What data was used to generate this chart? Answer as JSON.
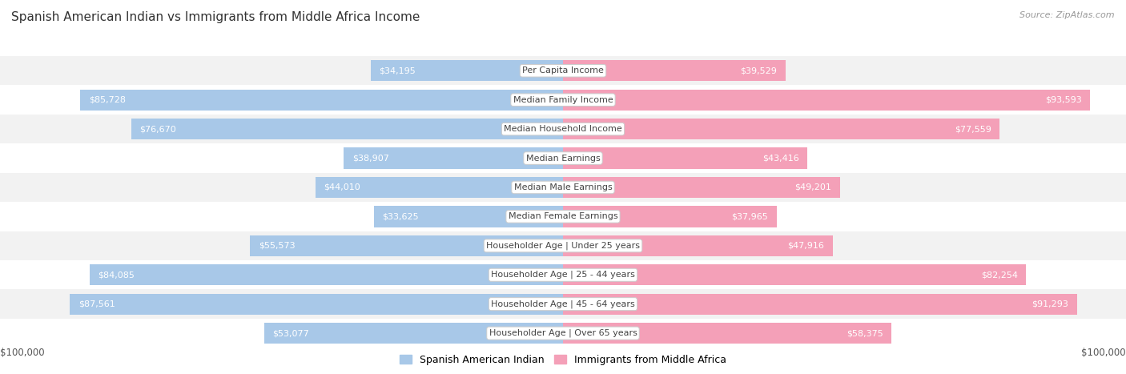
{
  "title": "Spanish American Indian vs Immigrants from Middle Africa Income",
  "source": "Source: ZipAtlas.com",
  "categories": [
    "Per Capita Income",
    "Median Family Income",
    "Median Household Income",
    "Median Earnings",
    "Median Male Earnings",
    "Median Female Earnings",
    "Householder Age | Under 25 years",
    "Householder Age | 25 - 44 years",
    "Householder Age | 45 - 64 years",
    "Householder Age | Over 65 years"
  ],
  "left_values": [
    34195,
    85728,
    76670,
    38907,
    44010,
    33625,
    55573,
    84085,
    87561,
    53077
  ],
  "right_values": [
    39529,
    93593,
    77559,
    43416,
    49201,
    37965,
    47916,
    82254,
    91293,
    58375
  ],
  "left_labels": [
    "$34,195",
    "$85,728",
    "$76,670",
    "$38,907",
    "$44,010",
    "$33,625",
    "$55,573",
    "$84,085",
    "$87,561",
    "$53,077"
  ],
  "right_labels": [
    "$39,529",
    "$93,593",
    "$77,559",
    "$43,416",
    "$49,201",
    "$37,965",
    "$47,916",
    "$82,254",
    "$91,293",
    "$58,375"
  ],
  "max_value": 100000,
  "left_bar_color": "#a8c8e8",
  "right_bar_color": "#f4a0b8",
  "background_color": "#ffffff",
  "row_bg_colors": [
    "#f2f2f2",
    "#ffffff"
  ],
  "legend_left": "Spanish American Indian",
  "legend_right": "Immigrants from Middle Africa",
  "title_fontsize": 11,
  "label_fontsize": 8,
  "category_fontsize": 8,
  "source_fontsize": 8,
  "axis_tick_label": "$100,000",
  "inside_label_threshold": 0.3
}
